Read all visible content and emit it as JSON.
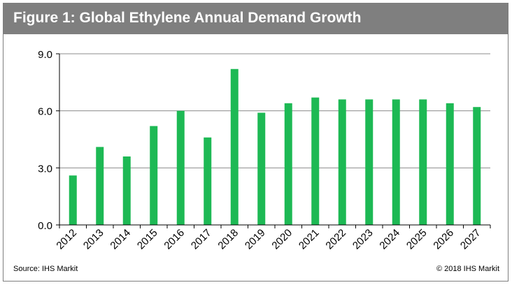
{
  "figure": {
    "title": "Figure 1: Global Ethylene Annual Demand Growth",
    "source": "Source: IHS Markit",
    "copyright": "© 2018 IHS Markit"
  },
  "colors": {
    "header_bg": "#7f7f7f",
    "bar": "#1db954",
    "grid": "#8c8c8c"
  },
  "chart_data": {
    "type": "bar",
    "title": "",
    "xlabel": "",
    "ylabel": "",
    "categories": [
      "2012",
      "2013",
      "2014",
      "2015",
      "2016",
      "2017",
      "2018",
      "2019",
      "2020",
      "2021",
      "2022",
      "2023",
      "2024",
      "2025",
      "2026",
      "2027"
    ],
    "values": [
      2.6,
      4.1,
      3.6,
      5.2,
      6.0,
      4.6,
      8.2,
      5.9,
      6.4,
      6.7,
      6.6,
      6.6,
      6.6,
      6.6,
      6.4,
      6.2
    ],
    "ylim": [
      0,
      9
    ],
    "yticks": [
      "0.0",
      "3.0",
      "6.0",
      "9.0"
    ],
    "grid": true,
    "legend": "none"
  }
}
